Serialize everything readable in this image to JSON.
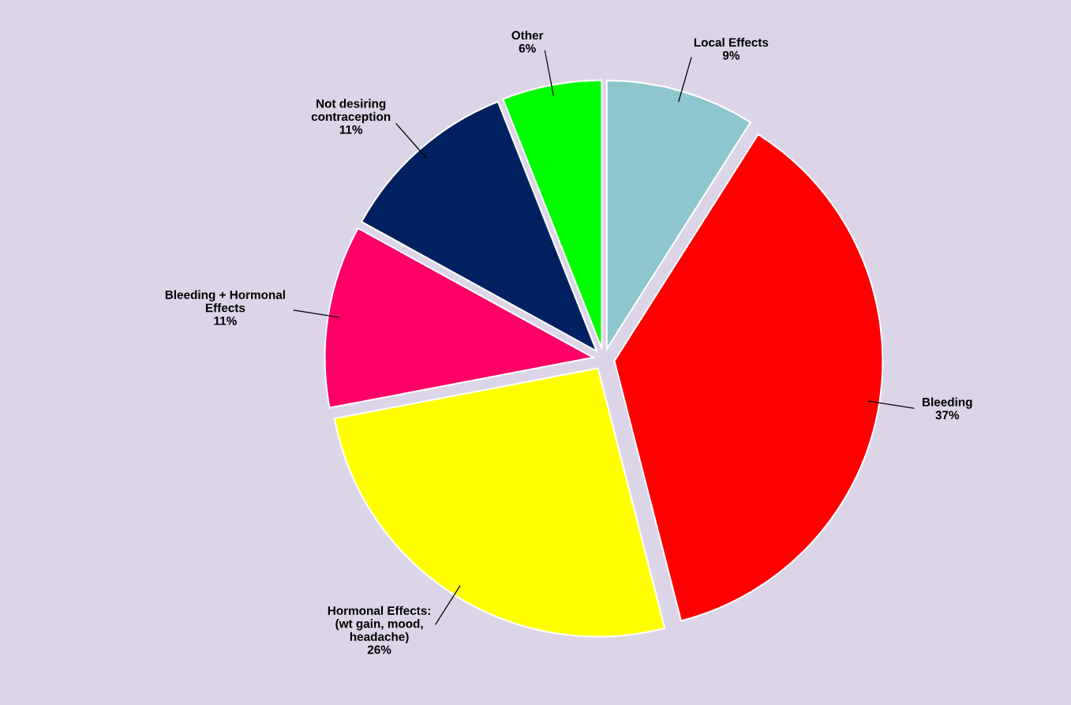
{
  "chart_data": {
    "type": "pie",
    "categories": [
      "Local Effects",
      "Bleeding",
      "Hormonal Effects:\n(wt gain, mood,\nheadache)",
      "Bleeding + Hormonal\nEffects",
      "Not desiring\ncontraception",
      "Other"
    ],
    "values": [
      9,
      37,
      26,
      11,
      11,
      6
    ],
    "colors": [
      "#8dc6cc",
      "#ff0000",
      "#ffff00",
      "#ff0066",
      "#002060",
      "#00ff00"
    ],
    "value_labels": [
      "9%",
      "37%",
      "26%",
      "11%",
      "11%",
      "6%"
    ]
  }
}
